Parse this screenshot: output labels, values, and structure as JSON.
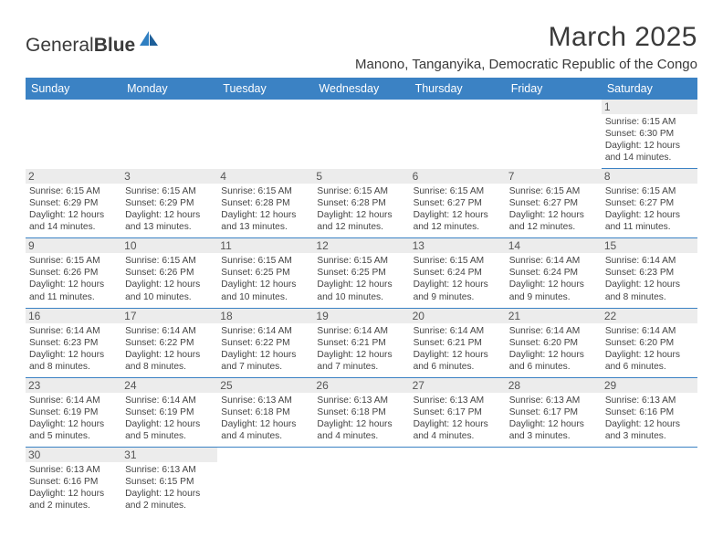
{
  "brand": {
    "part1": "General",
    "part2": "Blue"
  },
  "title": "March 2025",
  "location": "Manono, Tanganyika, Democratic Republic of the Congo",
  "colors": {
    "header_bg": "#3b82c4",
    "header_fg": "#ffffff",
    "daynum_bg": "#ececec",
    "logo_blue": "#2f7fc2"
  },
  "day_headers": [
    "Sunday",
    "Monday",
    "Tuesday",
    "Wednesday",
    "Thursday",
    "Friday",
    "Saturday"
  ],
  "weeks": [
    [
      null,
      null,
      null,
      null,
      null,
      null,
      {
        "n": "1",
        "sr": "Sunrise: 6:15 AM",
        "ss": "Sunset: 6:30 PM",
        "dl": "Daylight: 12 hours and 14 minutes."
      }
    ],
    [
      {
        "n": "2",
        "sr": "Sunrise: 6:15 AM",
        "ss": "Sunset: 6:29 PM",
        "dl": "Daylight: 12 hours and 14 minutes."
      },
      {
        "n": "3",
        "sr": "Sunrise: 6:15 AM",
        "ss": "Sunset: 6:29 PM",
        "dl": "Daylight: 12 hours and 13 minutes."
      },
      {
        "n": "4",
        "sr": "Sunrise: 6:15 AM",
        "ss": "Sunset: 6:28 PM",
        "dl": "Daylight: 12 hours and 13 minutes."
      },
      {
        "n": "5",
        "sr": "Sunrise: 6:15 AM",
        "ss": "Sunset: 6:28 PM",
        "dl": "Daylight: 12 hours and 12 minutes."
      },
      {
        "n": "6",
        "sr": "Sunrise: 6:15 AM",
        "ss": "Sunset: 6:27 PM",
        "dl": "Daylight: 12 hours and 12 minutes."
      },
      {
        "n": "7",
        "sr": "Sunrise: 6:15 AM",
        "ss": "Sunset: 6:27 PM",
        "dl": "Daylight: 12 hours and 12 minutes."
      },
      {
        "n": "8",
        "sr": "Sunrise: 6:15 AM",
        "ss": "Sunset: 6:27 PM",
        "dl": "Daylight: 12 hours and 11 minutes."
      }
    ],
    [
      {
        "n": "9",
        "sr": "Sunrise: 6:15 AM",
        "ss": "Sunset: 6:26 PM",
        "dl": "Daylight: 12 hours and 11 minutes."
      },
      {
        "n": "10",
        "sr": "Sunrise: 6:15 AM",
        "ss": "Sunset: 6:26 PM",
        "dl": "Daylight: 12 hours and 10 minutes."
      },
      {
        "n": "11",
        "sr": "Sunrise: 6:15 AM",
        "ss": "Sunset: 6:25 PM",
        "dl": "Daylight: 12 hours and 10 minutes."
      },
      {
        "n": "12",
        "sr": "Sunrise: 6:15 AM",
        "ss": "Sunset: 6:25 PM",
        "dl": "Daylight: 12 hours and 10 minutes."
      },
      {
        "n": "13",
        "sr": "Sunrise: 6:15 AM",
        "ss": "Sunset: 6:24 PM",
        "dl": "Daylight: 12 hours and 9 minutes."
      },
      {
        "n": "14",
        "sr": "Sunrise: 6:14 AM",
        "ss": "Sunset: 6:24 PM",
        "dl": "Daylight: 12 hours and 9 minutes."
      },
      {
        "n": "15",
        "sr": "Sunrise: 6:14 AM",
        "ss": "Sunset: 6:23 PM",
        "dl": "Daylight: 12 hours and 8 minutes."
      }
    ],
    [
      {
        "n": "16",
        "sr": "Sunrise: 6:14 AM",
        "ss": "Sunset: 6:23 PM",
        "dl": "Daylight: 12 hours and 8 minutes."
      },
      {
        "n": "17",
        "sr": "Sunrise: 6:14 AM",
        "ss": "Sunset: 6:22 PM",
        "dl": "Daylight: 12 hours and 8 minutes."
      },
      {
        "n": "18",
        "sr": "Sunrise: 6:14 AM",
        "ss": "Sunset: 6:22 PM",
        "dl": "Daylight: 12 hours and 7 minutes."
      },
      {
        "n": "19",
        "sr": "Sunrise: 6:14 AM",
        "ss": "Sunset: 6:21 PM",
        "dl": "Daylight: 12 hours and 7 minutes."
      },
      {
        "n": "20",
        "sr": "Sunrise: 6:14 AM",
        "ss": "Sunset: 6:21 PM",
        "dl": "Daylight: 12 hours and 6 minutes."
      },
      {
        "n": "21",
        "sr": "Sunrise: 6:14 AM",
        "ss": "Sunset: 6:20 PM",
        "dl": "Daylight: 12 hours and 6 minutes."
      },
      {
        "n": "22",
        "sr": "Sunrise: 6:14 AM",
        "ss": "Sunset: 6:20 PM",
        "dl": "Daylight: 12 hours and 6 minutes."
      }
    ],
    [
      {
        "n": "23",
        "sr": "Sunrise: 6:14 AM",
        "ss": "Sunset: 6:19 PM",
        "dl": "Daylight: 12 hours and 5 minutes."
      },
      {
        "n": "24",
        "sr": "Sunrise: 6:14 AM",
        "ss": "Sunset: 6:19 PM",
        "dl": "Daylight: 12 hours and 5 minutes."
      },
      {
        "n": "25",
        "sr": "Sunrise: 6:13 AM",
        "ss": "Sunset: 6:18 PM",
        "dl": "Daylight: 12 hours and 4 minutes."
      },
      {
        "n": "26",
        "sr": "Sunrise: 6:13 AM",
        "ss": "Sunset: 6:18 PM",
        "dl": "Daylight: 12 hours and 4 minutes."
      },
      {
        "n": "27",
        "sr": "Sunrise: 6:13 AM",
        "ss": "Sunset: 6:17 PM",
        "dl": "Daylight: 12 hours and 4 minutes."
      },
      {
        "n": "28",
        "sr": "Sunrise: 6:13 AM",
        "ss": "Sunset: 6:17 PM",
        "dl": "Daylight: 12 hours and 3 minutes."
      },
      {
        "n": "29",
        "sr": "Sunrise: 6:13 AM",
        "ss": "Sunset: 6:16 PM",
        "dl": "Daylight: 12 hours and 3 minutes."
      }
    ],
    [
      {
        "n": "30",
        "sr": "Sunrise: 6:13 AM",
        "ss": "Sunset: 6:16 PM",
        "dl": "Daylight: 12 hours and 2 minutes."
      },
      {
        "n": "31",
        "sr": "Sunrise: 6:13 AM",
        "ss": "Sunset: 6:15 PM",
        "dl": "Daylight: 12 hours and 2 minutes."
      },
      null,
      null,
      null,
      null,
      null
    ]
  ]
}
